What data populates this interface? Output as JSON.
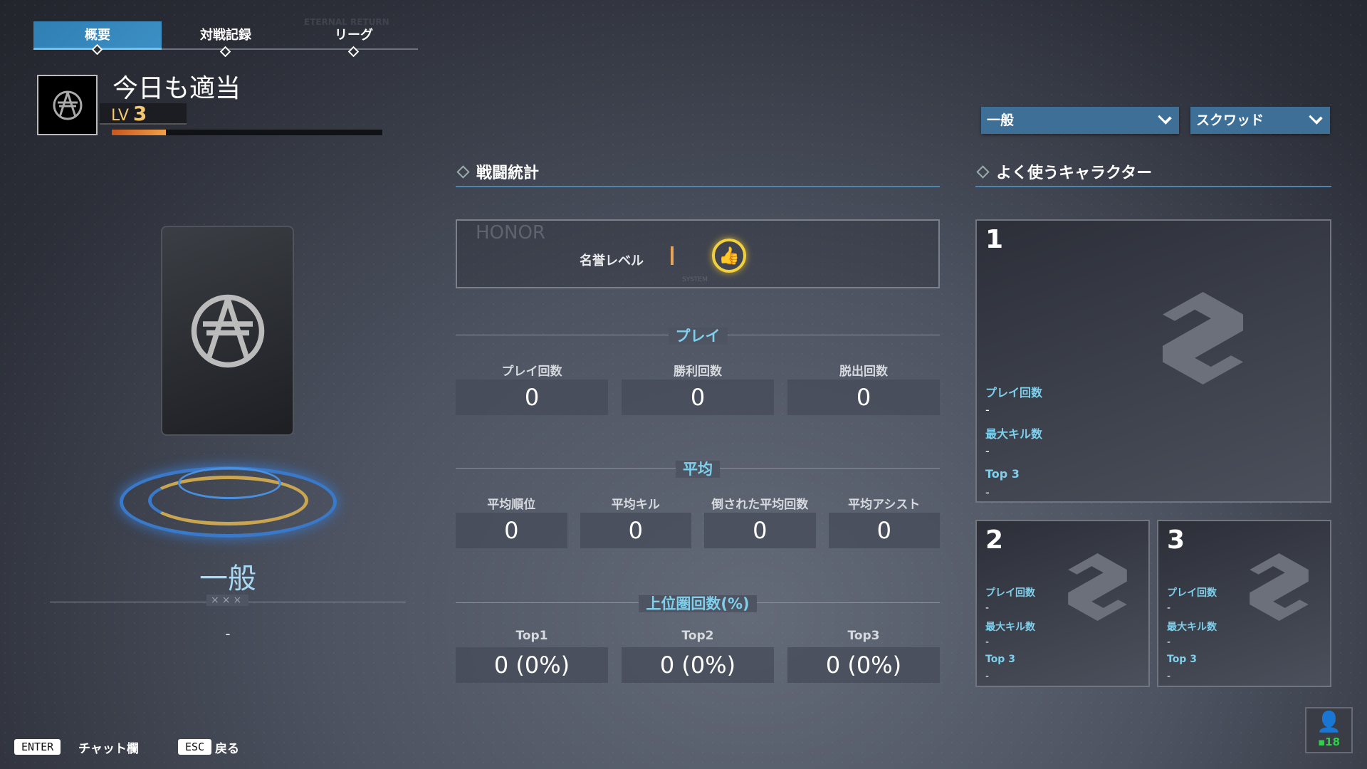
{
  "tabs": [
    {
      "label": "概要",
      "active": true
    },
    {
      "label": "対戦記録"
    },
    {
      "label": "リーグ"
    }
  ],
  "header_deco": "ETERNAL RETURN",
  "profile": {
    "name": "今日も適当",
    "level_label": "LV",
    "level": "3",
    "exp_progress_pct": 20,
    "mode": "一般",
    "mode_value": "-"
  },
  "filters": {
    "mode": "一般",
    "team": "スクワッド"
  },
  "battle_stats": {
    "title": "戦闘統計",
    "honor": {
      "deco": "HONOR",
      "label": "名誉レベル",
      "icon": "thumbs-up-medal-icon",
      "system": "SYSTEM"
    },
    "play": {
      "title": "プレイ",
      "items": [
        {
          "label": "プレイ回数",
          "value": "0"
        },
        {
          "label": "勝利回数",
          "value": "0"
        },
        {
          "label": "脱出回数",
          "value": "0"
        }
      ]
    },
    "average": {
      "title": "平均",
      "items": [
        {
          "label": "平均順位",
          "value": "0"
        },
        {
          "label": "平均キル",
          "value": "0"
        },
        {
          "label": "倒された平均回数",
          "value": "0"
        },
        {
          "label": "平均アシスト",
          "value": "0"
        }
      ]
    },
    "top": {
      "title": "上位圏回数(%)",
      "items": [
        {
          "label": "Top1",
          "value": "0 (0%)"
        },
        {
          "label": "Top2",
          "value": "0 (0%)"
        },
        {
          "label": "Top3",
          "value": "0 (0%)"
        }
      ]
    }
  },
  "characters": {
    "title": "よく使うキャラクター",
    "cards": [
      {
        "rank": "1",
        "plays_label": "プレイ回数",
        "plays": "-",
        "max_kill_label": "最大キル数",
        "max_kill": "-",
        "top3_label": "Top 3",
        "top3": "-"
      },
      {
        "rank": "2",
        "plays_label": "プレイ回数",
        "plays": "-",
        "max_kill_label": "最大キル数",
        "max_kill": "-",
        "top3_label": "Top 3",
        "top3": "-"
      },
      {
        "rank": "3",
        "plays_label": "プレイ回数",
        "plays": "-",
        "max_kill_label": "最大キル数",
        "max_kill": "-",
        "top3_label": "Top 3",
        "top3": "-"
      }
    ]
  },
  "footer": {
    "enter_key": "ENTER",
    "enter_label": "チャット欄",
    "esc_key": "ESC",
    "esc_label": "戻る"
  },
  "friends": {
    "online": "18",
    "color": "#2fd04a"
  },
  "deco": {
    "xxx": "×××"
  }
}
